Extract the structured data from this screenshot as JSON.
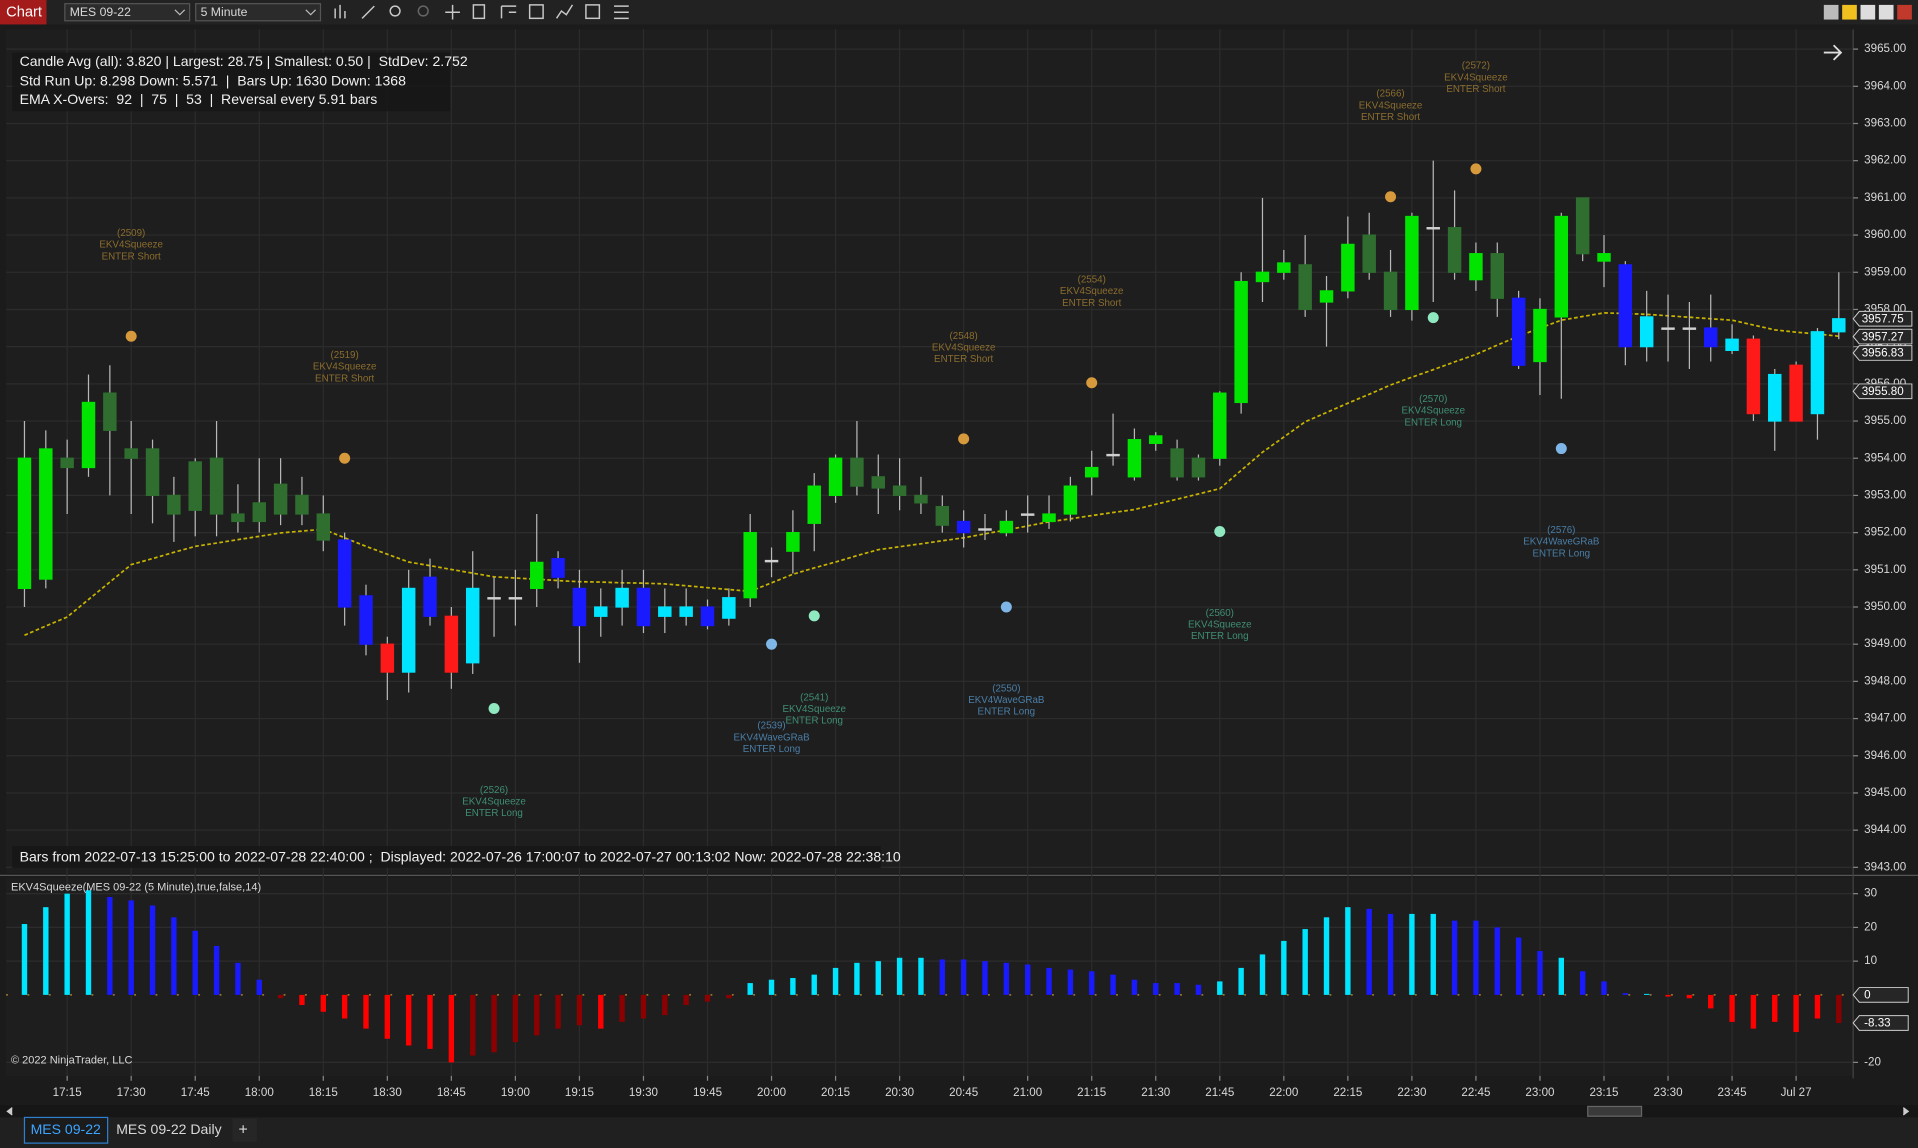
{
  "toolbar": {
    "tab": "Chart",
    "instrument": "MES 09-22",
    "interval": "5 Minute"
  },
  "chart_data": [
    {
      "type": "candlestick",
      "stats": [
        "Candle Avg (all): 3.820 | Largest: 28.75 | Smallest: 0.50 |  StdDev: 2.752",
        "Std Run Up: 8.298 Down: 5.571  |  Bars Up: 1630 Down: 1368",
        "EMA X-Overs:  92  |  75  |  53  |  Reversal every 5.91 bars"
      ],
      "footer": "Bars from 2022-07-13 15:25:00 to 2022-07-28 22:40:00 ;  Displayed: 2022-07-26 17:00:07 to 2022-07-27 00:13:02 Now: 2022-07-28 22:38:10",
      "categories": [
        null,
        null,
        "17:15",
        null,
        null,
        "17:30",
        null,
        null,
        "17:45",
        null,
        null,
        "18:00",
        null,
        null,
        "18:15",
        null,
        null,
        "18:30",
        null,
        null,
        "18:45",
        null,
        null,
        "19:00",
        null,
        null,
        "19:15",
        null,
        null,
        "19:30",
        null,
        null,
        "19:45",
        null,
        null,
        "20:00",
        null,
        null,
        "20:15",
        null,
        null,
        "20:30",
        null,
        null,
        "20:45",
        null,
        null,
        "21:00",
        null,
        null,
        "21:15",
        null,
        null,
        "21:30",
        null,
        null,
        "21:45",
        null,
        null,
        "22:00",
        null,
        null,
        "22:15",
        null,
        null,
        "22:30",
        null,
        null,
        "22:45",
        null,
        null,
        "23:00",
        null,
        null,
        "23:15",
        null,
        null,
        "23:30",
        null,
        null,
        "23:45",
        null,
        null,
        "Jul 27",
        null,
        null
      ],
      "open": [
        3950.5,
        3950.75,
        3953.75,
        3953.75,
        3954.75,
        3954,
        3954.25,
        3953,
        3952.6,
        3952.5,
        3952.3,
        3952.3,
        3952.5,
        3953,
        3952.5,
        3951.8,
        3950.3,
        3949,
        3948.25,
        3950.8,
        3949.75,
        3948.5,
        3950.25,
        3950.25,
        3950.5,
        3951.3,
        3950.5,
        3949.75,
        3950,
        3950.5,
        3949.75,
        3949.75,
        3950,
        3949.7,
        3950.25,
        3951.25,
        3951.5,
        3952.25,
        3953,
        3953.25,
        3953.2,
        3953,
        3952.8,
        3952.7,
        3952.3,
        3952.1,
        3952,
        3952.5,
        3952.3,
        3952.5,
        3953.5,
        3954.1,
        3953.5,
        3954.4,
        3954.25,
        3954,
        3954,
        3955.5,
        3958.75,
        3959,
        3959.2,
        3958.2,
        3958.5,
        3959,
        3959,
        3958,
        3960.2,
        3960.2,
        3958.8,
        3959.5,
        3958.3,
        3956.6,
        3957.8,
        3959.5,
        3959.3,
        3959.2,
        3957,
        3957.5,
        3957.5,
        3957.5,
        3956.9,
        3957.2,
        3955,
        3956.5,
        3955.2,
        3957.4
      ],
      "high": [
        3955,
        3954.75,
        3954.5,
        3956.25,
        3956.5,
        3955,
        3954.5,
        3953.5,
        3954,
        3955,
        3953.3,
        3954,
        3954,
        3953.5,
        3953,
        3952,
        3950.6,
        3949.2,
        3951,
        3951.3,
        3950,
        3951.5,
        3950.8,
        3951,
        3952.5,
        3951.5,
        3951,
        3950.5,
        3951,
        3951,
        3950.5,
        3950.5,
        3950.2,
        3950.5,
        3952.5,
        3951.6,
        3952.6,
        3953.6,
        3954.1,
        3955,
        3954.1,
        3954,
        3953.5,
        3953,
        3952.6,
        3952.5,
        3952.6,
        3953,
        3953,
        3953.5,
        3954.2,
        3955.2,
        3954.8,
        3954.7,
        3954.5,
        3954.1,
        3955.8,
        3959,
        3961,
        3959.6,
        3960,
        3958.9,
        3960.5,
        3960.6,
        3959.6,
        3960.6,
        3962,
        3961.2,
        3959.8,
        3959.8,
        3958.5,
        3958.3,
        3960.6,
        3961,
        3960,
        3959.3,
        3958.5,
        3958.4,
        3958.2,
        3958.4,
        3957.6,
        3957.3,
        3956.4,
        3956.6,
        3957.5,
        3959
      ],
      "low": [
        3950,
        3950.5,
        3952.5,
        3953.5,
        3953,
        3952.5,
        3952.25,
        3951.75,
        3951.9,
        3951.9,
        3952,
        3952,
        3952.2,
        3952.2,
        3951.5,
        3949.5,
        3948.7,
        3947.5,
        3947.7,
        3949.5,
        3947.8,
        3948.2,
        3949.2,
        3949.5,
        3950,
        3950.5,
        3948.5,
        3949.2,
        3949.5,
        3949.3,
        3949.3,
        3949.5,
        3949.4,
        3949.5,
        3950,
        3950.8,
        3950.9,
        3951.5,
        3952.8,
        3953,
        3952.5,
        3952.6,
        3952.5,
        3952,
        3951.6,
        3951.8,
        3951.9,
        3952,
        3952.1,
        3952.3,
        3953,
        3953.8,
        3953.4,
        3954.2,
        3953.4,
        3953.4,
        3953.8,
        3955.2,
        3958.2,
        3958.8,
        3957.8,
        3957,
        3958.3,
        3958.8,
        3957.8,
        3957.7,
        3958.2,
        3958.8,
        3958.5,
        3957.8,
        3956.4,
        3955.7,
        3955.6,
        3959.3,
        3958.6,
        3956.5,
        3956.6,
        3956.6,
        3956.4,
        3956.6,
        3956.8,
        3955,
        3954.2,
        3955,
        3954.5,
        3957.2
      ],
      "close": [
        3954,
        3954.25,
        3954,
        3955.5,
        3955.75,
        3954.25,
        3953,
        3952.5,
        3953.9,
        3954,
        3952.5,
        3952.8,
        3953.3,
        3952.5,
        3951.8,
        3950,
        3949,
        3948.25,
        3950.5,
        3949.75,
        3948.25,
        3950.5,
        3950.25,
        3950.25,
        3951.2,
        3950.8,
        3949.5,
        3950,
        3950.5,
        3949.5,
        3950,
        3950,
        3949.5,
        3950.25,
        3952,
        3951.25,
        3952,
        3953.25,
        3954,
        3954,
        3953.5,
        3953.25,
        3953,
        3952.2,
        3952,
        3952.1,
        3952.3,
        3952.5,
        3952.5,
        3953.25,
        3953.75,
        3954.1,
        3954.5,
        3954.6,
        3953.5,
        3953.5,
        3955.75,
        3958.75,
        3959,
        3959.25,
        3958,
        3958.5,
        3959.75,
        3960,
        3958,
        3960.5,
        3960.2,
        3959,
        3959.5,
        3958.3,
        3956.5,
        3958,
        3960.5,
        3961,
        3959.5,
        3957,
        3957.8,
        3957.5,
        3957.5,
        3957,
        3957.2,
        3955.2,
        3956.25,
        3955,
        3957.4,
        3957.75
      ],
      "colors": [
        "#00e400",
        "#00e400",
        "#2f6e2f",
        "#00e400",
        "#2f6e2f",
        "#2f6e2f",
        "#2f6e2f",
        "#2f6e2f",
        "#2f6e2f",
        "#2f6e2f",
        "#2f6e2f",
        "#2f6e2f",
        "#2f6e2f",
        "#2f6e2f",
        "#2f6e2f",
        "#1a1aff",
        "#1a1aff",
        "#ff1a1a",
        "#00e5ff",
        "#1a1aff",
        "#ff1a1a",
        "#00e5ff",
        "#d0d0d0",
        "#d0d0d0",
        "#00e400",
        "#1a1aff",
        "#1a1aff",
        "#00e5ff",
        "#00e5ff",
        "#1a1aff",
        "#00e5ff",
        "#00e5ff",
        "#1a1aff",
        "#00e5ff",
        "#00e400",
        "#d0d0d0",
        "#00e400",
        "#00e400",
        "#00e400",
        "#2f6e2f",
        "#2f6e2f",
        "#2f6e2f",
        "#2f6e2f",
        "#2f6e2f",
        "#1a1aff",
        "#d0d0d0",
        "#00e400",
        "#d0d0d0",
        "#00e400",
        "#00e400",
        "#00e400",
        "#d0d0d0",
        "#00e400",
        "#00e400",
        "#2f6e2f",
        "#2f6e2f",
        "#00e400",
        "#00e400",
        "#00e400",
        "#00e400",
        "#2f6e2f",
        "#00e400",
        "#00e400",
        "#2f6e2f",
        "#2f6e2f",
        "#00e400",
        "#d0d0d0",
        "#2f6e2f",
        "#00e400",
        "#2f6e2f",
        "#1a1aff",
        "#00e400",
        "#00e400",
        "#2f6e2f",
        "#00e400",
        "#1a1aff",
        "#00e5ff",
        "#d0d0d0",
        "#d0d0d0",
        "#1a1aff",
        "#00e5ff",
        "#ff1a1a",
        "#00e5ff",
        "#ff1a1a",
        "#00e5ff",
        "#00e5ff"
      ],
      "ema": {
        "color": "#c8b400",
        "dashed": true,
        "values": [
          3949.24,
          3949.49,
          3949.73,
          3950.2,
          3950.67,
          3951.14,
          3951.3,
          3951.47,
          3951.63,
          3951.72,
          3951.81,
          3951.9,
          3951.99,
          3952.04,
          3952.09,
          3951.86,
          3951.63,
          3951.42,
          3951.21,
          3951.11,
          3951.01,
          3950.91,
          3950.81,
          3950.78,
          3950.75,
          3950.71,
          3950.68,
          3950.67,
          3950.65,
          3950.64,
          3950.62,
          3950.57,
          3950.52,
          3950.47,
          3950.42,
          3950.65,
          3950.88,
          3951.05,
          3951.21,
          3951.38,
          3951.54,
          3951.62,
          3951.7,
          3951.78,
          3951.86,
          3951.97,
          3952.07,
          3952.18,
          3952.29,
          3952.37,
          3952.46,
          3952.54,
          3952.62,
          3952.76,
          3952.9,
          3953.04,
          3953.18,
          3953.67,
          3954.16,
          3954.57,
          3954.98,
          3955.23,
          3955.48,
          3955.72,
          3955.97,
          3956.18,
          3956.38,
          3956.59,
          3956.79,
          3957.04,
          3957.28,
          3957.5,
          3957.71,
          3957.81,
          3957.91,
          3957.89,
          3957.87,
          3957.83,
          3957.79,
          3957.75,
          3957.71,
          3957.58,
          3957.45,
          3957.39,
          3957.34,
          3957.28
        ]
      },
      "signals": [
        {
          "id": "(2509)",
          "name": "EKV4Squeeze",
          "action": "ENTER Short",
          "price": 3957.28,
          "color": "#d69a3c",
          "label_color": "#8c6d2e"
        },
        {
          "id": "(2519)",
          "name": "EKV4Squeeze",
          "action": "ENTER Short",
          "price": 3954,
          "color": "#d69a3c",
          "label_color": "#8c6d2e"
        },
        {
          "id": "(2526)",
          "name": "EKV4Squeeze",
          "action": "ENTER Long",
          "price": 3947.27,
          "color": "#8fe8c0",
          "label_color": "#3f8f74"
        },
        {
          "id": "(2539)",
          "name": "EKV4WaveGRaB",
          "action": "ENTER Long",
          "price": 3949,
          "color": "#7fb6e8",
          "label_color": "#4a7fa8"
        },
        {
          "id": "(2541)",
          "name": "EKV4Squeeze",
          "action": "ENTER Long",
          "price": 3949.76,
          "color": "#8fe8c0",
          "label_color": "#3f8f74"
        },
        {
          "id": "(2548)",
          "name": "EKV4Squeeze",
          "action": "ENTER Short",
          "price": 3954.52,
          "color": "#d69a3c",
          "label_color": "#8c6d2e"
        },
        {
          "id": "(2550)",
          "name": "EKV4WaveGRaB",
          "action": "ENTER Long",
          "price": 3950,
          "color": "#7fb6e8",
          "label_color": "#4a7fa8"
        },
        {
          "id": "(2554)",
          "name": "EKV4Squeeze",
          "action": "ENTER Short",
          "price": 3956.03,
          "color": "#d69a3c",
          "label_color": "#8c6d2e"
        },
        {
          "id": "(2560)",
          "name": "EKV4Squeeze",
          "action": "ENTER Long",
          "price": 3952.03,
          "color": "#8fe8c0",
          "label_color": "#3f8f74"
        },
        {
          "id": "(2566)",
          "name": "EKV4Squeeze",
          "action": "ENTER Short",
          "price": 3961.03,
          "color": "#d69a3c",
          "label_color": "#8c6d2e"
        },
        {
          "id": "(2570)",
          "name": "EKV4Squeeze",
          "action": "ENTER Long",
          "price": 3957.78,
          "color": "#8fe8c0",
          "label_color": "#3f8f74"
        },
        {
          "id": "(2572)",
          "name": "EKV4Squeeze",
          "action": "ENTER Short",
          "price": 3961.78,
          "color": "#d69a3c",
          "label_color": "#8c6d2e"
        },
        {
          "id": "(2576)",
          "name": "EKV4WaveGRaB",
          "action": "ENTER Long",
          "price": 3954.26,
          "color": "#7fb6e8",
          "label_color": "#4a7fa8"
        }
      ],
      "ylim": [
        3942.85,
        3965.4
      ],
      "yticks": [
        {
          "value": 3943,
          "label": "3943.00"
        },
        {
          "value": 3944,
          "label": "3944.00"
        },
        {
          "value": 3945,
          "label": "3945.00"
        },
        {
          "value": 3946,
          "label": "3946.00"
        },
        {
          "value": 3947,
          "label": "3947.00"
        },
        {
          "value": 3948,
          "label": "3948.00"
        },
        {
          "value": 3949,
          "label": "3949.00"
        },
        {
          "value": 3950,
          "label": "3950.00"
        },
        {
          "value": 3951,
          "label": "3951.00"
        },
        {
          "value": 3952,
          "label": "3952.00"
        },
        {
          "value": 3953,
          "label": "3953.00"
        },
        {
          "value": 3954,
          "label": "3954.00"
        },
        {
          "value": 3955,
          "label": "3955.00"
        },
        {
          "value": 3956,
          "label": "3956.00"
        },
        {
          "value": 3957,
          "label": "3957.00"
        },
        {
          "value": 3958,
          "label": "3958.00"
        },
        {
          "value": 3959,
          "label": "3959.00"
        },
        {
          "value": 3960,
          "label": "3960.00"
        },
        {
          "value": 3961,
          "label": "3961.00"
        },
        {
          "value": 3962,
          "label": "3962.00"
        },
        {
          "value": 3963,
          "label": "3963.00"
        },
        {
          "value": 3964,
          "label": "3964.00"
        },
        {
          "value": 3965,
          "label": "3965.00"
        }
      ],
      "price_markers": [
        {
          "value": 3957.75,
          "label": "3957.75"
        },
        {
          "value": 3957.27,
          "label": "3957.27"
        },
        {
          "value": 3956.83,
          "label": "3956.83"
        },
        {
          "value": 3955.8,
          "label": "3955.80"
        }
      ],
      "grid": true
    },
    {
      "type": "bar",
      "title": "EKV4Squeeze(MES 09-22 (5 Minute),true,false,14)",
      "copyright": "© 2022 NinjaTrader, LLC",
      "values": [
        21,
        26,
        30,
        31,
        29,
        28,
        26.5,
        23,
        19,
        14.5,
        9.5,
        4.5,
        -1,
        -3,
        -5,
        -7,
        -10,
        -13,
        -15,
        -16,
        -20,
        -18,
        -17,
        -14,
        -12,
        -10,
        -9,
        -10,
        -8,
        -7,
        -6,
        -3,
        -2,
        -1,
        3.5,
        4.5,
        5,
        6,
        8,
        9.5,
        10,
        11,
        11,
        10.5,
        10.5,
        10,
        9.5,
        9,
        8,
        7.5,
        7,
        6,
        4.5,
        3.5,
        3.5,
        3,
        4,
        8,
        12,
        16,
        19.5,
        23,
        26,
        25.5,
        24,
        24,
        24,
        22,
        22,
        20,
        17,
        13,
        11,
        7,
        4,
        0.5,
        0.3,
        -0.5,
        -1,
        -4,
        -8,
        -10,
        -8,
        -11,
        -7,
        -8.33
      ],
      "colors": [
        "#00e5ff",
        "#00e5ff",
        "#00e5ff",
        "#00e5ff",
        "#1a1aff",
        "#1a1aff",
        "#1a1aff",
        "#1a1aff",
        "#1a1aff",
        "#1a1aff",
        "#1a1aff",
        "#1a1aff",
        "#8b0000",
        "#ff0000",
        "#ff0000",
        "#ff0000",
        "#ff0000",
        "#ff0000",
        "#ff0000",
        "#ff0000",
        "#ff0000",
        "#8b0000",
        "#8b0000",
        "#8b0000",
        "#8b0000",
        "#8b0000",
        "#8b0000",
        "#ff0000",
        "#8b0000",
        "#8b0000",
        "#8b0000",
        "#8b0000",
        "#8b0000",
        "#8b0000",
        "#00e5ff",
        "#00e5ff",
        "#00e5ff",
        "#00e5ff",
        "#00e5ff",
        "#00e5ff",
        "#00e5ff",
        "#00e5ff",
        "#00e5ff",
        "#1a1aff",
        "#1a1aff",
        "#1a1aff",
        "#1a1aff",
        "#1a1aff",
        "#1a1aff",
        "#1a1aff",
        "#1a1aff",
        "#1a1aff",
        "#1a1aff",
        "#1a1aff",
        "#1a1aff",
        "#1a1aff",
        "#00e5ff",
        "#00e5ff",
        "#00e5ff",
        "#00e5ff",
        "#00e5ff",
        "#00e5ff",
        "#00e5ff",
        "#1a1aff",
        "#1a1aff",
        "#00e5ff",
        "#00e5ff",
        "#1a1aff",
        "#1a1aff",
        "#1a1aff",
        "#1a1aff",
        "#1a1aff",
        "#00e5ff",
        "#1a1aff",
        "#1a1aff",
        "#1a1aff",
        "#00e5ff",
        "#ff0000",
        "#ff0000",
        "#ff0000",
        "#ff0000",
        "#ff0000",
        "#ff0000",
        "#ff0000",
        "#ff0000",
        "#8b0000"
      ],
      "ylim": [
        -24,
        34.7
      ],
      "yticks": [
        -20,
        10,
        20,
        30
      ],
      "markers": [
        {
          "value": 0,
          "label": "0"
        },
        {
          "value": -8.33,
          "label": "-8.33"
        }
      ],
      "grid": true
    }
  ],
  "tabs": [
    "MES 09-22",
    "MES 09-22 Daily",
    "+"
  ]
}
